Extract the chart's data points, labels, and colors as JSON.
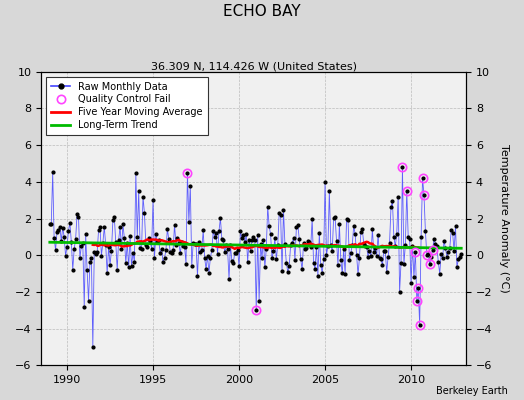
{
  "title": "ECHO BAY",
  "subtitle": "36.309 N, 114.426 W (United States)",
  "ylabel": "Temperature Anomaly (°C)",
  "credit": "Berkeley Earth",
  "ylim": [
    -6,
    10
  ],
  "yticks": [
    -6,
    -4,
    -2,
    0,
    2,
    4,
    6,
    8,
    10
  ],
  "xlim": [
    1988.5,
    2013.2
  ],
  "xticks": [
    1990,
    1995,
    2000,
    2005,
    2010
  ],
  "raw_color": "#4444ff",
  "trend_color": "#00bb00",
  "moving_avg_color": "#ff0000",
  "qc_fail_color": "#ff44ff",
  "background_color": "#d8d8d8",
  "plot_bg_color": "#f0f0f0",
  "seed": 137,
  "title_fontsize": 11,
  "subtitle_fontsize": 8,
  "tick_fontsize": 8,
  "ylabel_fontsize": 8,
  "legend_fontsize": 7
}
